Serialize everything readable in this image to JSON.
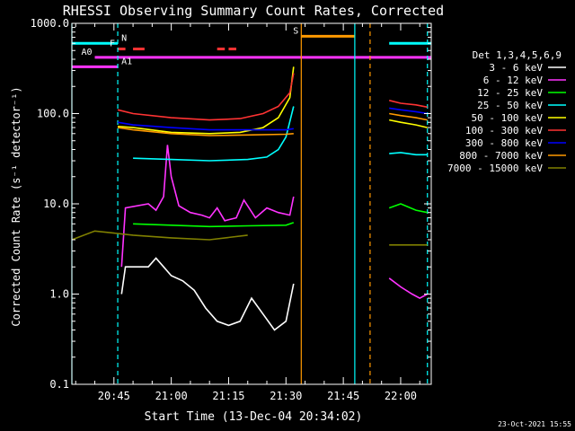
{
  "chart_data": {
    "type": "line",
    "title": "RHESSI Observing Summary Count Rates, Corrected",
    "xlabel": "Start Time (13-Dec-04 20:34:02)",
    "ylabel": "Corrected Count Rate (s⁻¹ detector⁻¹)",
    "y_scale": "log",
    "ylim": [
      0.1,
      1000
    ],
    "xlim": [
      "20:34",
      "22:08"
    ],
    "x_ticks": [
      "20:45",
      "21:00",
      "21:15",
      "21:30",
      "21:45",
      "22:00"
    ],
    "y_ticks": [
      "0.1",
      "1.0",
      "10.0",
      "100.0",
      "1000.0"
    ],
    "legend_title": "Det 1,3,4,5,6,9",
    "legend_position": "right",
    "timestamp": "23-Oct-2021 15:55",
    "series": [
      {
        "name": "3 - 6 keV",
        "color": "#ffffff",
        "x": [
          "20:34",
          "20:47",
          "20:48",
          "20:54",
          "20:56",
          "20:58",
          "21:00",
          "21:03",
          "21:06",
          "21:09",
          "21:12",
          "21:15",
          "21:18",
          "21:21",
          "21:24",
          "21:27",
          "21:30",
          "21:32"
        ],
        "y": [
          1.0,
          1.0,
          2.0,
          2.0,
          2.5,
          2.0,
          1.6,
          1.4,
          1.1,
          0.7,
          0.5,
          0.45,
          0.5,
          0.9,
          0.6,
          0.4,
          0.5,
          1.3
        ]
      },
      {
        "name": "6 - 12 keV",
        "color": "#ff33ff",
        "x": [
          "20:47",
          "20:48",
          "20:54",
          "20:56",
          "20:58",
          "20:59",
          "21:00",
          "21:02",
          "21:05",
          "21:08",
          "21:10",
          "21:12",
          "21:14",
          "21:17",
          "21:19",
          "21:22",
          "21:25",
          "21:28",
          "21:31",
          "21:32",
          "21:57",
          "22:00",
          "22:03",
          "22:05",
          "22:07"
        ],
        "y": [
          2.0,
          9.0,
          10.0,
          8.5,
          12.0,
          45.0,
          20.0,
          9.5,
          8.0,
          7.5,
          7.0,
          9.0,
          6.5,
          7.0,
          11.0,
          7.0,
          9.0,
          8.0,
          7.5,
          12.0,
          1.5,
          1.2,
          1.0,
          0.9,
          1.0
        ]
      },
      {
        "name": "12 - 25 keV",
        "color": "#00ff00",
        "x": [
          "20:34",
          "20:50",
          "21:00",
          "21:10",
          "21:20",
          "21:30",
          "21:32",
          "21:57",
          "22:00",
          "22:04",
          "22:07"
        ],
        "y": [
          6.0,
          6.0,
          5.8,
          5.6,
          5.7,
          5.8,
          6.2,
          9.0,
          10.0,
          8.5,
          8.0
        ]
      },
      {
        "name": "25 - 50 keV",
        "color": "#00ffff",
        "x": [
          "20:34",
          "20:50",
          "21:00",
          "21:10",
          "21:20",
          "21:25",
          "21:28",
          "21:30",
          "21:32",
          "21:57",
          "22:00",
          "22:04",
          "22:07"
        ],
        "y": [
          30.0,
          32.0,
          31.0,
          30.0,
          31.0,
          33.0,
          40.0,
          55.0,
          120.0,
          36.0,
          37.0,
          35.0,
          35.0
        ]
      },
      {
        "name": "50 - 100 keV",
        "color": "#ffff00",
        "x": [
          "20:34",
          "20:46",
          "20:50",
          "21:00",
          "21:10",
          "21:18",
          "21:24",
          "21:28",
          "21:31",
          "21:32",
          "21:57",
          "22:00",
          "22:04",
          "22:07"
        ],
        "y": [
          60.0,
          72.0,
          70.0,
          62.0,
          60.0,
          62.0,
          70.0,
          90.0,
          150.0,
          330.0,
          85.0,
          80.0,
          75.0,
          70.0
        ]
      },
      {
        "name": "100 - 300 keV",
        "color": "#ff3333",
        "x": [
          "20:34",
          "20:46",
          "20:50",
          "21:00",
          "21:10",
          "21:18",
          "21:24",
          "21:28",
          "21:31",
          "21:32",
          "21:57",
          "22:00",
          "22:04",
          "22:07"
        ],
        "y": [
          90.0,
          110.0,
          100.0,
          90.0,
          85.0,
          88.0,
          100.0,
          120.0,
          170.0,
          280.0,
          140.0,
          130.0,
          125.0,
          118.0
        ]
      },
      {
        "name": "300 - 800 keV",
        "color": "#0000ff",
        "x": [
          "20:34",
          "20:46",
          "20:50",
          "21:00",
          "21:10",
          "21:20",
          "21:30",
          "21:32",
          "21:57",
          "22:00",
          "22:04",
          "22:07"
        ],
        "y": [
          73.0,
          80.0,
          75.0,
          70.0,
          66.0,
          66.0,
          66.0,
          68.0,
          115.0,
          110.0,
          105.0,
          100.0
        ]
      },
      {
        "name": "800 - 7000 keV",
        "color": "#ff9900",
        "x": [
          "20:34",
          "20:46",
          "20:50",
          "21:00",
          "21:10",
          "21:20",
          "21:30",
          "21:32",
          "21:57",
          "22:00",
          "22:04",
          "22:07"
        ],
        "y": [
          63.0,
          70.0,
          66.0,
          60.0,
          57.0,
          58.0,
          59.0,
          60.0,
          100.0,
          95.0,
          90.0,
          85.0
        ]
      },
      {
        "name": "7000 - 15000 keV",
        "color": "#808000",
        "x": [
          "20:34",
          "20:40",
          "20:50",
          "21:00",
          "21:10",
          "21:20",
          "21:32",
          "21:57",
          "22:00",
          "22:04",
          "22:07"
        ],
        "y": [
          4.0,
          5.0,
          4.5,
          4.2,
          4.0,
          4.5,
          5.0,
          3.5,
          3.5,
          3.5,
          3.5
        ]
      }
    ],
    "flags": [
      {
        "label": "N",
        "color": "#00ffff",
        "segments": [
          [
            "20:34",
            "20:46"
          ],
          [
            "21:57",
            "22:08"
          ]
        ],
        "level": 600
      },
      {
        "label": "A0",
        "color": "#ff33ff",
        "segments": [
          [
            "20:40",
            "22:08"
          ]
        ],
        "level": 420
      },
      {
        "label": "A1",
        "color": "#ff33ff",
        "segments": [
          [
            "20:34",
            "20:46"
          ]
        ],
        "level": 330
      },
      {
        "label": "F",
        "color": "#ff3333",
        "segments": [
          [
            "20:46",
            "20:48"
          ],
          [
            "20:50",
            "20:53"
          ],
          [
            "21:12",
            "21:14"
          ],
          [
            "21:15",
            "21:17"
          ]
        ],
        "level": 520
      },
      {
        "label": "S",
        "color": "#ff9900",
        "segments": [
          [
            "21:34",
            "21:48"
          ]
        ],
        "level": 720
      }
    ],
    "vlines": [
      {
        "t": "20:34",
        "color": "#00ffff",
        "dash": false
      },
      {
        "t": "20:46",
        "color": "#00ffff",
        "dash": true
      },
      {
        "t": "21:34",
        "color": "#ff9900",
        "dash": false
      },
      {
        "t": "21:48",
        "color": "#00ffff",
        "dash": false
      },
      {
        "t": "21:52",
        "color": "#ff9900",
        "dash": true
      },
      {
        "t": "22:07",
        "color": "#00ffff",
        "dash": true
      }
    ]
  }
}
